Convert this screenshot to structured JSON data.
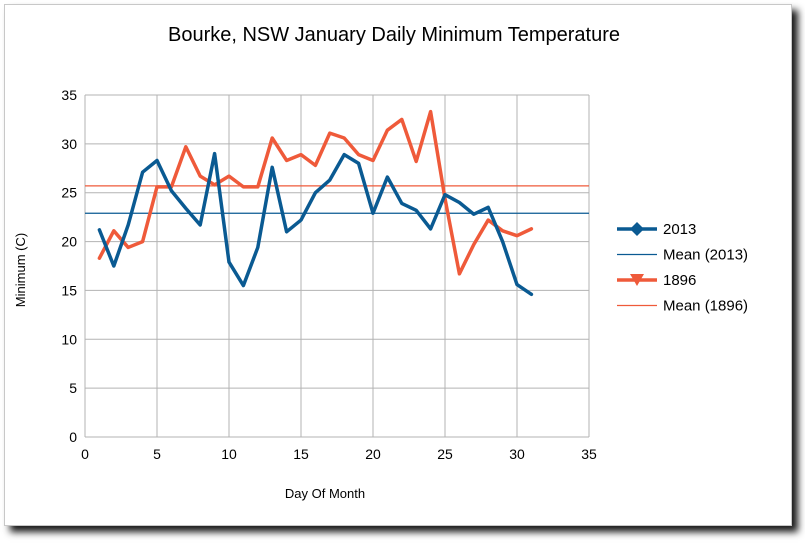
{
  "chart_data": {
    "type": "line",
    "title": "Bourke, NSW January Daily Minimum Temperature",
    "xlabel": "Day Of Month",
    "ylabel": "Minimum (C)",
    "xlim": [
      0,
      35
    ],
    "ylim": [
      0,
      35
    ],
    "xticks": [
      0,
      5,
      10,
      15,
      20,
      25,
      30,
      35
    ],
    "yticks": [
      0,
      5,
      10,
      15,
      20,
      25,
      30,
      35
    ],
    "grid": true,
    "legend_position": "right",
    "x": [
      1,
      2,
      3,
      4,
      5,
      6,
      7,
      8,
      9,
      10,
      11,
      12,
      13,
      14,
      15,
      16,
      17,
      18,
      19,
      20,
      21,
      22,
      23,
      24,
      25,
      26,
      27,
      28,
      29,
      30,
      31
    ],
    "series": [
      {
        "name": "2013",
        "color": "#0a5a92",
        "marker": "diamond",
        "values": [
          21.2,
          17.5,
          21.7,
          27.1,
          28.3,
          25.2,
          23.4,
          21.7,
          29.0,
          17.9,
          15.5,
          19.4,
          27.6,
          21.0,
          22.2,
          25.0,
          26.3,
          28.9,
          28.0,
          22.9,
          26.6,
          23.9,
          23.2,
          21.3,
          24.8,
          24.0,
          22.8,
          23.5,
          20.0,
          15.6,
          14.6
        ]
      },
      {
        "name": "Mean (2013)",
        "color": "#0a5a92",
        "type": "hline",
        "value": 22.9
      },
      {
        "name": "1896",
        "color": "#ef5a3a",
        "marker": "triangle-down",
        "values": [
          18.3,
          21.1,
          19.4,
          20.0,
          25.6,
          25.6,
          29.7,
          26.7,
          25.8,
          26.7,
          25.6,
          25.6,
          30.6,
          28.3,
          28.9,
          27.8,
          31.1,
          30.6,
          28.9,
          28.3,
          31.4,
          32.5,
          28.2,
          33.3,
          24.4,
          16.7,
          19.7,
          22.2,
          21.1,
          20.6,
          21.3
        ]
      },
      {
        "name": "Mean (1896)",
        "color": "#ef5a3a",
        "type": "hline",
        "value": 25.7
      }
    ]
  }
}
